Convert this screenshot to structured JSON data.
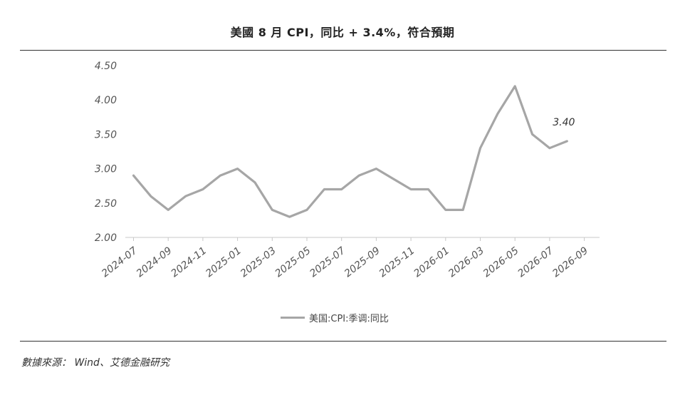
{
  "title": "美國 8 月 CPI，同比 + 3.4%，符合預期",
  "source": "數據來源： Wind、艾德金融研究",
  "chart_data": {
    "type": "line",
    "x": [
      "2024-07",
      "2024-08",
      "2024-09",
      "2024-10",
      "2024-11",
      "2024-12",
      "2025-01",
      "2025-02",
      "2025-03",
      "2025-04",
      "2025-05",
      "2025-06",
      "2025-07",
      "2025-08",
      "2025-09",
      "2025-10",
      "2025-11",
      "2025-12",
      "2026-01",
      "2026-02",
      "2026-03",
      "2026-04",
      "2026-05",
      "2026-06",
      "2026-07",
      "2026-08"
    ],
    "tick_labels": [
      "2024-07",
      "2024-09",
      "2024-11",
      "2025-01",
      "2025-03",
      "2025-05",
      "2025-07",
      "2025-09",
      "2025-11",
      "2026-01",
      "2026-03",
      "2026-05",
      "2026-07",
      "2026-09"
    ],
    "y_ticks": [
      "2.00",
      "2.50",
      "3.00",
      "3.50",
      "4.00",
      "4.50"
    ],
    "ylim": [
      2.0,
      4.5
    ],
    "series": [
      {
        "name": "美国:CPI:季调:同比",
        "values": [
          2.9,
          2.6,
          2.4,
          2.6,
          2.7,
          2.9,
          3.0,
          2.8,
          2.4,
          2.3,
          2.4,
          2.7,
          2.7,
          2.9,
          3.0,
          2.85,
          2.7,
          2.7,
          2.4,
          2.4,
          3.3,
          3.8,
          4.2,
          3.5,
          3.3,
          3.4
        ],
        "color": "#a6a6a6"
      }
    ],
    "annotation": {
      "label": "3.40",
      "x": "2026-08",
      "value": 3.4
    },
    "legend": "bottom-center",
    "grid": false
  }
}
